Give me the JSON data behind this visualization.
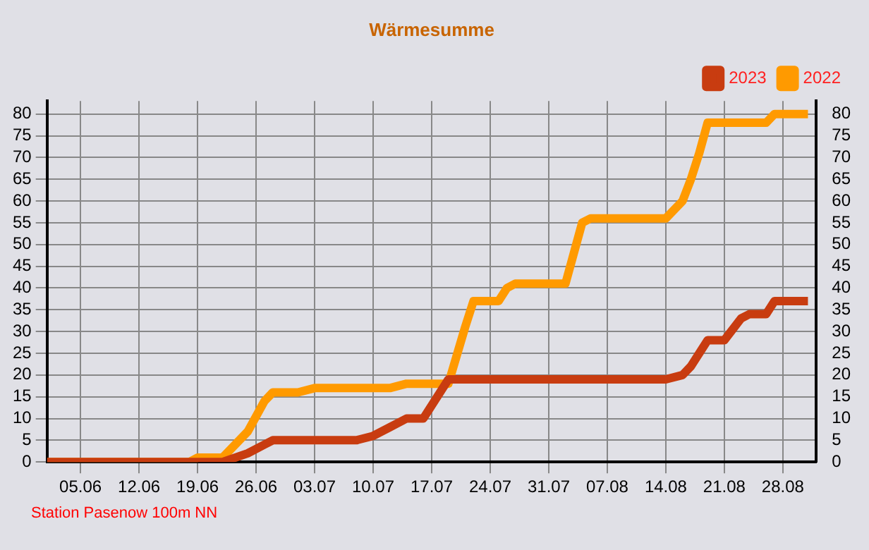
{
  "chart_data": {
    "type": "line",
    "title": "Wärmesumme",
    "x": [
      "--06-01",
      "--06-18",
      "--06-19",
      "--06-22",
      "--06-25",
      "--06-27",
      "--06-28",
      "--07-01",
      "--07-03",
      "--07-08",
      "--07-10",
      "--07-12",
      "--07-14",
      "--07-16",
      "--07-18",
      "--07-19",
      "--07-21",
      "--07-22",
      "--07-25",
      "--07-26",
      "--07-27",
      "--08-02",
      "--08-04",
      "--08-05",
      "--08-12",
      "--08-14",
      "--08-16",
      "--08-17",
      "--08-18",
      "--08-19",
      "--08-21",
      "--08-23",
      "--08-24",
      "--08-26",
      "--08-27",
      "--08-28",
      "--08-31"
    ],
    "series": [
      {
        "name": "2023",
        "color": "#c83c10",
        "values": [
          0,
          0,
          0,
          0,
          2,
          4,
          5,
          5,
          5,
          5,
          6,
          8,
          10,
          10,
          16,
          19,
          19,
          19,
          19,
          19,
          19,
          19,
          19,
          19,
          19,
          19,
          20,
          22,
          25,
          28,
          28,
          33,
          34,
          34,
          37,
          37,
          37
        ]
      },
      {
        "name": "2022",
        "color": "#ff9a00",
        "values": [
          0,
          0,
          1,
          1,
          7,
          14,
          16,
          16,
          17,
          17,
          17,
          17,
          18,
          18,
          18,
          18,
          31,
          37,
          37,
          40,
          41,
          41,
          55,
          56,
          56,
          56,
          60,
          65,
          71,
          78,
          78,
          78,
          78,
          78,
          80,
          80,
          80
        ]
      }
    ],
    "xlim": [
      "--06-01",
      "--09-01"
    ],
    "xticks": [
      {
        "value": "--06-05",
        "label": "05.06"
      },
      {
        "value": "--06-12",
        "label": "12.06"
      },
      {
        "value": "--06-19",
        "label": "19.06"
      },
      {
        "value": "--06-26",
        "label": "26.06"
      },
      {
        "value": "--07-03",
        "label": "03.07"
      },
      {
        "value": "--07-10",
        "label": "10.07"
      },
      {
        "value": "--07-17",
        "label": "17.07"
      },
      {
        "value": "--07-24",
        "label": "24.07"
      },
      {
        "value": "--07-31",
        "label": "31.07"
      },
      {
        "value": "--08-07",
        "label": "07.08"
      },
      {
        "value": "--08-14",
        "label": "14.08"
      },
      {
        "value": "--08-21",
        "label": "21.08"
      },
      {
        "value": "--08-28",
        "label": "28.08"
      }
    ],
    "ylim": [
      0,
      83
    ],
    "yticks": [
      0,
      5,
      10,
      15,
      20,
      25,
      30,
      35,
      40,
      45,
      50,
      55,
      60,
      65,
      70,
      75,
      80
    ],
    "y2lim": [
      0,
      83
    ],
    "y2ticks": [
      0,
      5,
      10,
      15,
      20,
      25,
      30,
      35,
      40,
      45,
      50,
      55,
      60,
      65,
      70,
      75,
      80
    ],
    "grid": true,
    "legend": "top right",
    "marker": "none",
    "annotations": [
      "Station Pasenow 100m NN"
    ]
  }
}
